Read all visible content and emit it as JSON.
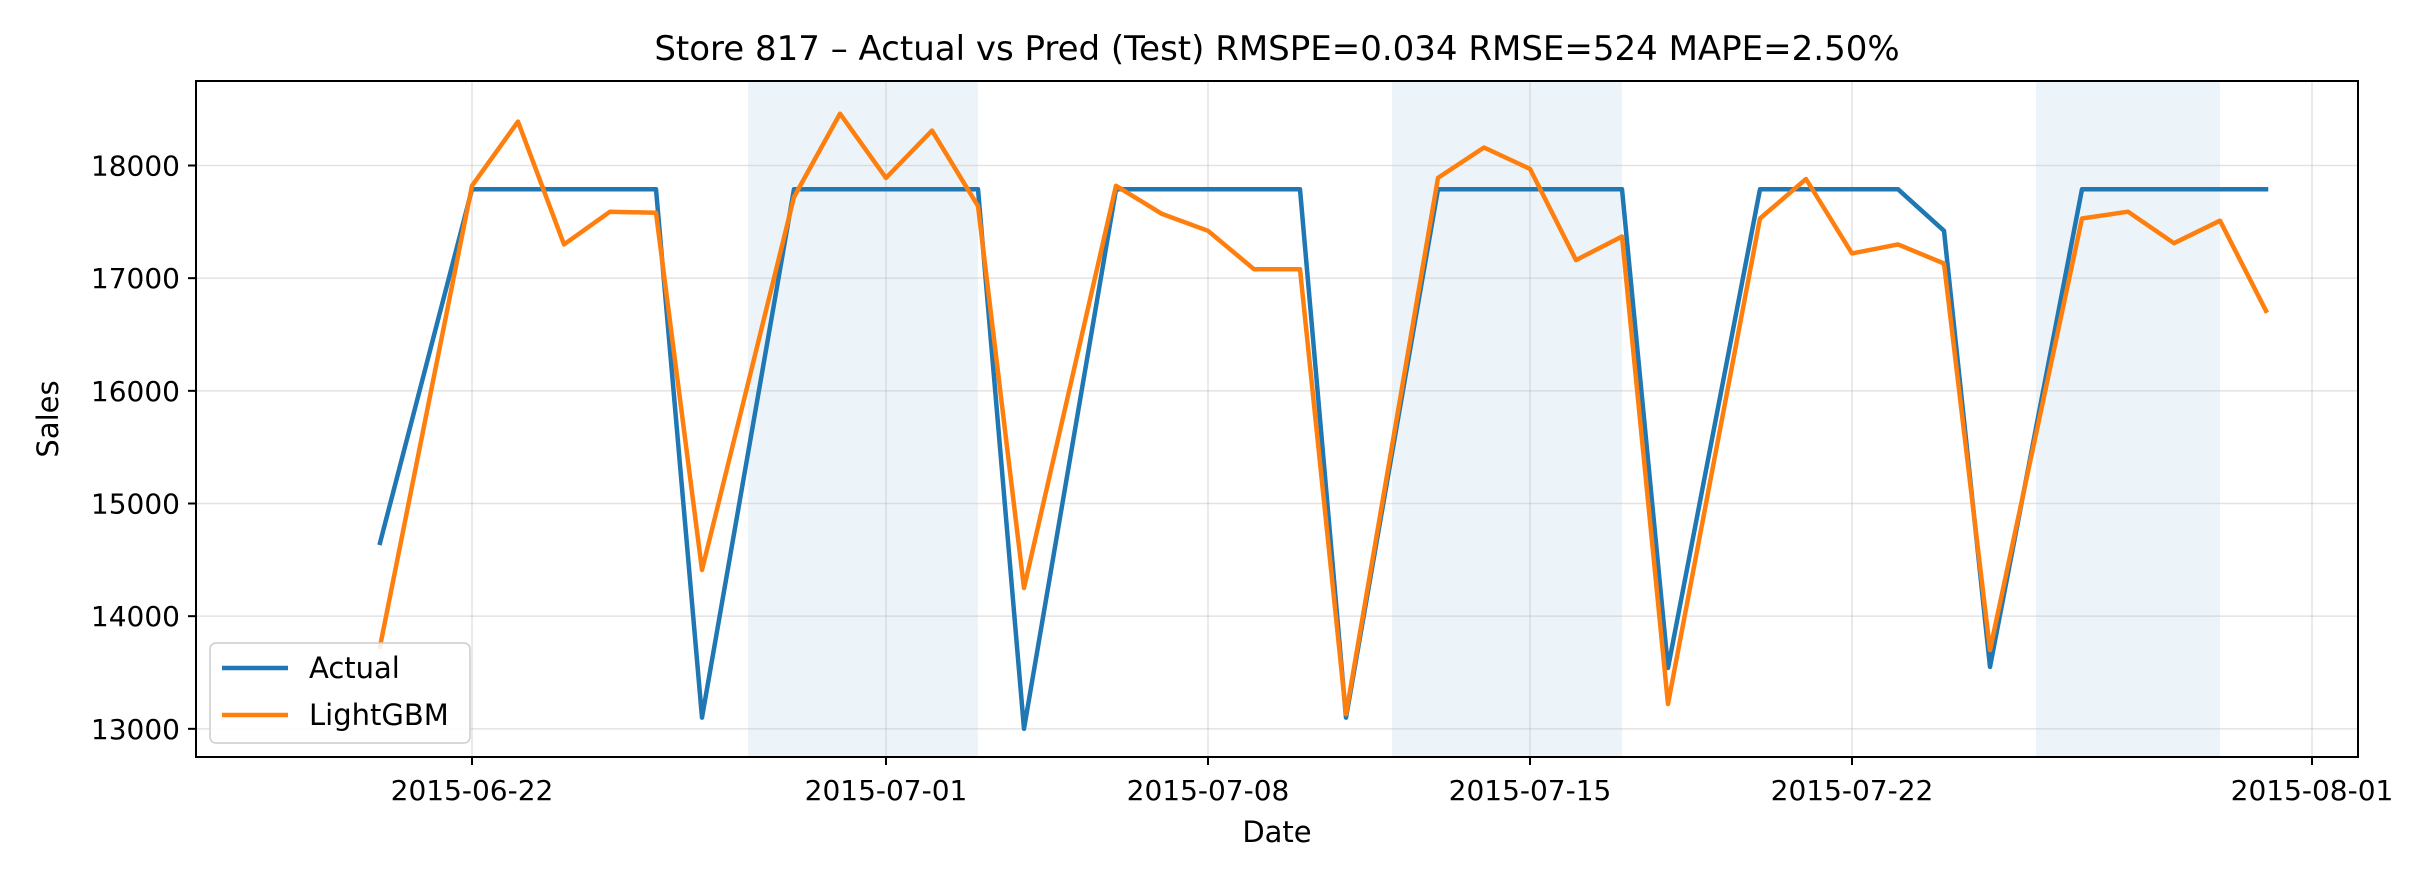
{
  "chart_data": {
    "type": "line",
    "title": "Store 817 – Actual vs Pred (Test)  RMSPE=0.034  RMSE=524  MAPE=2.50%",
    "xlabel": "Date",
    "ylabel": "Sales",
    "xlim": [
      "2015-06-16",
      "2015-08-02"
    ],
    "ylim": [
      12750,
      18750
    ],
    "x_ticks": [
      "2015-06-22",
      "2015-07-01",
      "2015-07-08",
      "2015-07-15",
      "2015-07-22",
      "2015-08-01"
    ],
    "y_ticks": [
      13000,
      14000,
      15000,
      16000,
      17000,
      18000
    ],
    "grid": true,
    "legend_position": "lower-left",
    "shaded_regions": [
      [
        "2015-06-28",
        "2015-07-03"
      ],
      [
        "2015-07-12",
        "2015-07-17"
      ],
      [
        "2015-07-26",
        "2015-07-30"
      ]
    ],
    "x": [
      "2015-06-20",
      "2015-06-22",
      "2015-06-23",
      "2015-06-24",
      "2015-06-25",
      "2015-06-26",
      "2015-06-27",
      "2015-06-29",
      "2015-06-30",
      "2015-07-01",
      "2015-07-02",
      "2015-07-03",
      "2015-07-04",
      "2015-07-06",
      "2015-07-07",
      "2015-07-08",
      "2015-07-09",
      "2015-07-10",
      "2015-07-11",
      "2015-07-13",
      "2015-07-14",
      "2015-07-15",
      "2015-07-16",
      "2015-07-17",
      "2015-07-18",
      "2015-07-20",
      "2015-07-21",
      "2015-07-22",
      "2015-07-23",
      "2015-07-24",
      "2015-07-25",
      "2015-07-27",
      "2015-07-28",
      "2015-07-29",
      "2015-07-30",
      "2015-07-31"
    ],
    "series": [
      {
        "name": "Actual",
        "color": "#1f77b4",
        "values": [
          14650,
          17790,
          17790,
          17790,
          17790,
          17790,
          13100,
          17790,
          17790,
          17790,
          17790,
          17790,
          13000,
          17790,
          17790,
          17790,
          17790,
          17790,
          13100,
          17790,
          17790,
          17790,
          17790,
          17790,
          13540,
          17790,
          17790,
          17790,
          17790,
          17420,
          13550,
          17790,
          17790,
          17790,
          17790,
          17790
        ]
      },
      {
        "name": "LightGBM",
        "color": "#ff7f0e",
        "values": [
          13730,
          17820,
          18390,
          17300,
          17590,
          17580,
          14410,
          17720,
          18460,
          17890,
          18310,
          17640,
          14250,
          17820,
          17570,
          17420,
          17080,
          17080,
          13130,
          17890,
          18160,
          17970,
          17160,
          17370,
          13220,
          17530,
          17880,
          17220,
          17300,
          17130,
          13700,
          17530,
          17590,
          17310,
          17510,
          16710
        ]
      }
    ]
  }
}
